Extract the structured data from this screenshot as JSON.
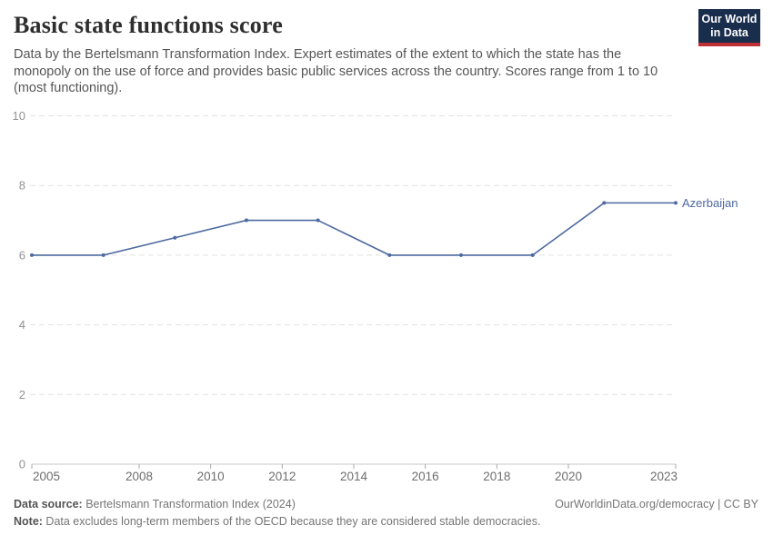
{
  "header": {
    "title": "Basic state functions score",
    "subtitle_lines": [
      "Data by the Bertelsmann Transformation Index. Expert estimates of the extent to which the state has the",
      "monopoly on the use of force and provides basic public services across the country. Scores range from 1 to 10",
      "(most functioning)."
    ],
    "logo": {
      "line1": "Our World",
      "line2": "in Data",
      "bg_color": "#192d4d",
      "stripe_color": "#bf3036"
    }
  },
  "chart_data": {
    "type": "line",
    "title": "Basic state functions score",
    "x": [
      2005,
      2007,
      2009,
      2011,
      2013,
      2015,
      2017,
      2019,
      2021,
      2023
    ],
    "series": [
      {
        "name": "Azerbaijan",
        "color": "#4d69a1",
        "values": [
          6,
          6,
          6.5,
          7,
          7,
          6,
          6,
          6,
          7.5,
          7.5
        ]
      }
    ],
    "xlim": [
      2005,
      2023
    ],
    "ylim": [
      0,
      10
    ],
    "yticks": [
      0,
      2,
      4,
      6,
      8,
      10
    ],
    "xticks": [
      2005,
      2008,
      2010,
      2012,
      2014,
      2016,
      2018,
      2020,
      2023
    ],
    "grid": "horizontal-dashed",
    "legend_position": "line-end",
    "xlabel": "",
    "ylabel": ""
  },
  "footer": {
    "datasource_label": "Data source:",
    "datasource_value": " Bertelsmann Transformation Index (2024)",
    "attribution": "OurWorldinData.org/democracy | CC BY",
    "note_label": "Note:",
    "note_value": " Data excludes long-term members of the OECD because they are considered stable democracies."
  }
}
